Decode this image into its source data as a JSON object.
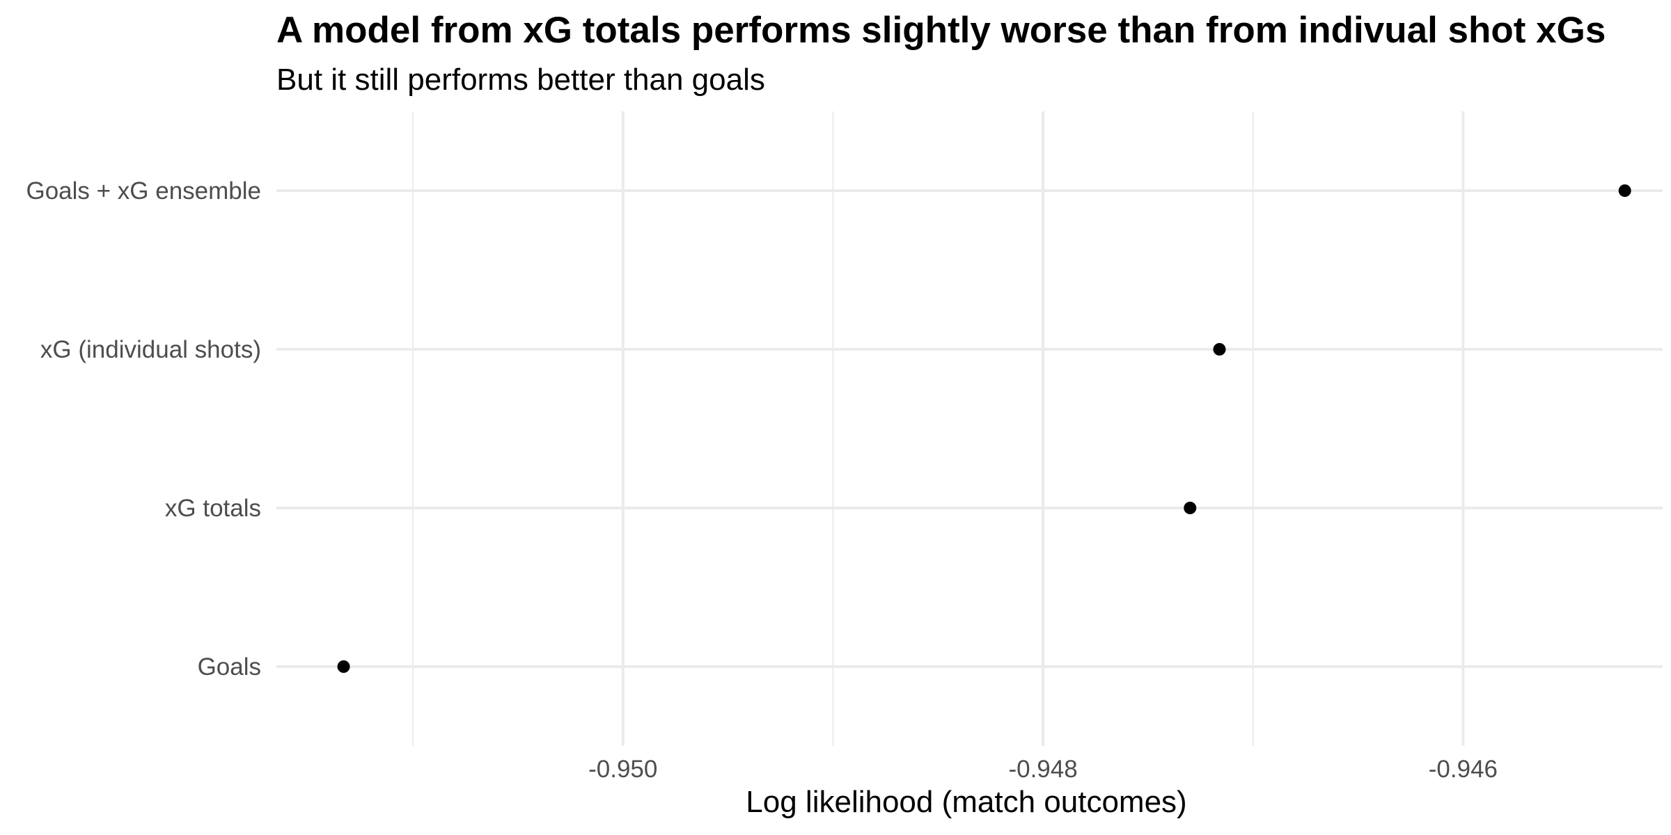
{
  "chart_data": {
    "type": "scatter",
    "title": "A model from xG totals performs slightly worse than from indivual shot xGs",
    "subtitle": "But it still performs better than goals",
    "xlabel": "Log likelihood (match outcomes)",
    "ylabel": "",
    "categories": [
      "Goals",
      "xG totals",
      "xG (individual shots)",
      "Goals + xG ensemble"
    ],
    "values": [
      -0.95133,
      -0.9473,
      -0.94716,
      -0.94523
    ],
    "xlim": [
      -0.95165,
      -0.94505
    ],
    "x_ticks": [
      -0.95,
      -0.948,
      -0.946
    ],
    "x_tick_labels": [
      "-0.950",
      "-0.948",
      "-0.946"
    ],
    "grid": true,
    "point_color": "#000000",
    "grid_color": "#ebebeb"
  }
}
